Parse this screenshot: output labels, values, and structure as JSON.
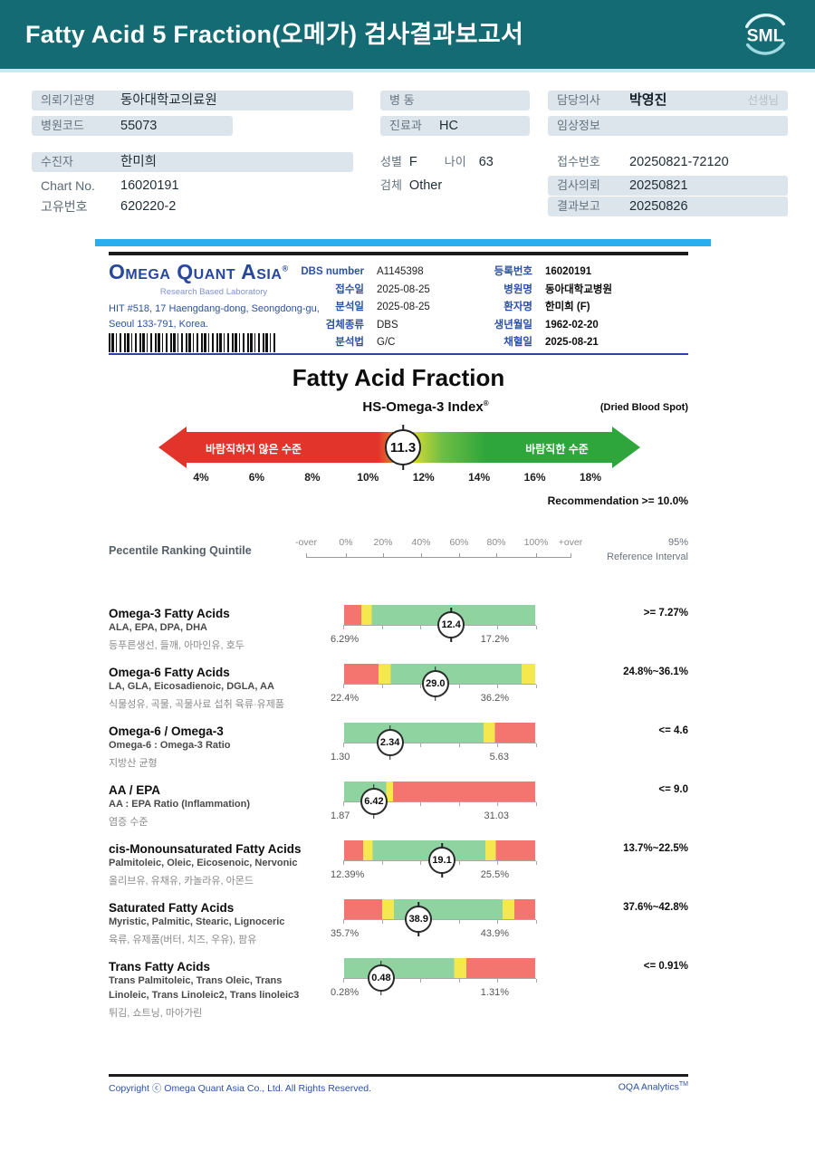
{
  "header": {
    "title": "Fatty Acid 5 Fraction(오메가) 검사결과보고서",
    "logo_text": "SML"
  },
  "colors": {
    "header_teal": "#156B73",
    "cyan_bar": "#29AEEF",
    "info_bar": "#DDE5EC",
    "doc_blue": "#2B51A3",
    "bar_red": "#F4756F",
    "bar_yellow": "#F5E74E",
    "bar_green": "#8FD3A1",
    "gauge_red": "#E3342B",
    "gauge_green": "#2FA63C"
  },
  "info": {
    "org_label": "의뢰기관명",
    "org_value": "동아대학교의료원",
    "hospital_code_label": "병원코드",
    "hospital_code_value": "55073",
    "patient_label": "수진자",
    "patient_value": "한미희",
    "chart_no_label": "Chart No.",
    "chart_no_value": "16020191",
    "unique_no_label": "고유번호",
    "unique_no_value": "620220-2",
    "ward_label": "병 동",
    "ward_value": "",
    "dept_label": "진료과",
    "dept_value": "HC",
    "sex_label": "성별",
    "sex_value": "F",
    "age_label": "나이",
    "age_value": "63",
    "specimen_label": "검체",
    "specimen_value": "Other",
    "doctor_label": "담당의사",
    "doctor_value": "박영진",
    "doctor_suffix": "선생님",
    "clinical_label": "임상정보",
    "clinical_value": "",
    "receipt_label": "접수번호",
    "receipt_value": "20250821-72120",
    "request_label": "검사의뢰",
    "request_value": "20250821",
    "report_label": "결과보고",
    "report_value": "20250826"
  },
  "doc": {
    "lab_name": "Omega Quant Asia",
    "lab_reg": "®",
    "lab_tagline": "Research Based Laboratory",
    "address1": "HIT #518, 17 Haengdang-dong, Seongdong-gu,",
    "address2": "Seoul 133-791, Korea.",
    "fields_mid": [
      [
        "DBS number",
        "A1145398"
      ],
      [
        "접수일",
        "2025-08-25"
      ],
      [
        "분석일",
        "2025-08-25"
      ],
      [
        "검체종류",
        "DBS"
      ],
      [
        "분석법",
        "G/C"
      ]
    ],
    "fields_right": [
      [
        "등록번호",
        "16020191"
      ],
      [
        "병원명",
        "동아대학교병원"
      ],
      [
        "환자명",
        "한미희 (F)"
      ],
      [
        "생년월일",
        "1962-02-20"
      ],
      [
        "채혈일",
        "2025-08-21"
      ]
    ]
  },
  "quintile": {
    "label": "Pecentile Ranking Quintile",
    "scale": [
      "-over",
      "0%",
      "20%",
      "40%",
      "60%",
      "80%",
      "100%",
      "+over"
    ],
    "ref_line1": "95%",
    "ref_line2": "Reference Interval"
  },
  "footer": {
    "copyright": "Copyright ⓒ Omega Quant Asia Co., Ltd.  All Rights Reserved.",
    "brand": "OQA Analytics",
    "brand_sup": "TM"
  },
  "chart_data": [
    {
      "type": "gauge",
      "title": "Fatty Acid Fraction",
      "subtitle": "HS-Omega-3 Index",
      "subtitle_reg": "®",
      "note": "(Dried Blood Spot)",
      "value": 11.3,
      "value_label": "11.3",
      "scale_min": 4,
      "scale_max": 18,
      "scale_ticks": [
        "4%",
        "6%",
        "8%",
        "10%",
        "12%",
        "14%",
        "16%",
        "18%"
      ],
      "left_zone_label": "바람직하지 않은 수준",
      "right_zone_label": "바람직한 수준",
      "recommendation": "Recommendation  >=  10.0%"
    },
    {
      "type": "bullet",
      "rows": [
        {
          "name": "Omega-3 Fatty Acids",
          "components": [
            "ALA, EPA, DPA, DHA"
          ],
          "korean": "등푸른생선, 들깨, 아마인유, 호두",
          "range_min": "6.29%",
          "range_max": "17.2%",
          "value": 12.4,
          "value_label": "12.4",
          "marker_pos": 0.56,
          "reference": ">= 7.27%",
          "segments": [
            {
              "color": "red",
              "to": 9
            },
            {
              "color": "yellow",
              "to": 14.5
            },
            {
              "color": "green",
              "to": 100
            }
          ]
        },
        {
          "name": "Omega-6 Fatty Acids",
          "components": [
            "LA, GLA, Eicosadienoic, DGLA, AA"
          ],
          "korean": "식물성유, 곡물, 곡물사료 섭취 육류·유제품",
          "range_min": "22.4%",
          "range_max": "36.2%",
          "value": 29.0,
          "value_label": "29.0",
          "marker_pos": 0.478,
          "reference": "24.8%~36.1%",
          "segments": [
            {
              "color": "red",
              "to": 18
            },
            {
              "color": "yellow",
              "to": 24.5
            },
            {
              "color": "green",
              "to": 93
            },
            {
              "color": "yellow",
              "to": 100
            }
          ]
        },
        {
          "name": "Omega-6 / Omega-3",
          "components": [
            "Omega-6 : Omega-3 Ratio"
          ],
          "korean": "지방산 균형",
          "range_min": "1.30",
          "range_max": "5.63",
          "value": 2.34,
          "value_label": "2.34",
          "marker_pos": 0.24,
          "reference": "<= 4.6",
          "segments": [
            {
              "color": "green",
              "to": 73
            },
            {
              "color": "yellow",
              "to": 79
            },
            {
              "color": "red",
              "to": 100
            }
          ]
        },
        {
          "name": "AA / EPA",
          "components": [
            "AA : EPA Ratio (Inflammation)"
          ],
          "korean": "염증 수준",
          "range_min": "1.87",
          "range_max": "31.03",
          "value": 6.42,
          "value_label": "6.42",
          "marker_pos": 0.156,
          "reference": "<= 9.0",
          "segments": [
            {
              "color": "green",
              "to": 22
            },
            {
              "color": "yellow",
              "to": 25.5
            },
            {
              "color": "red",
              "to": 100
            }
          ]
        },
        {
          "name": "cis-Monounsaturated Fatty Acids",
          "components": [
            "Palmitoleic, Oleic, Eicosenoic, Nervonic"
          ],
          "korean": "올리브유, 유채유, 카놀라유, 아몬드",
          "range_min": "12.39%",
          "range_max": "25.5%",
          "value": 19.1,
          "value_label": "19.1",
          "marker_pos": 0.512,
          "reference": "13.7%~22.5%",
          "segments": [
            {
              "color": "red",
              "to": 10
            },
            {
              "color": "yellow",
              "to": 15
            },
            {
              "color": "green",
              "to": 74
            },
            {
              "color": "yellow",
              "to": 79.5
            },
            {
              "color": "red",
              "to": 100
            }
          ]
        },
        {
          "name": "Saturated Fatty Acids",
          "components": [
            "Myristic, Palmitic, Stearic, Lignoceric"
          ],
          "korean": "육류, 유제품(버터, 치즈, 우유), 팜유",
          "range_min": "35.7%",
          "range_max": "43.9%",
          "value": 38.9,
          "value_label": "38.9",
          "marker_pos": 0.39,
          "reference": "37.6%~42.8%",
          "segments": [
            {
              "color": "red",
              "to": 20
            },
            {
              "color": "yellow",
              "to": 26
            },
            {
              "color": "green",
              "to": 83
            },
            {
              "color": "yellow",
              "to": 89
            },
            {
              "color": "red",
              "to": 100
            }
          ]
        },
        {
          "name": "Trans Fatty Acids",
          "components": [
            "Trans Palmitoleic, Trans Oleic, Trans",
            "Linoleic, Trans Linoleic2, Trans linoleic3"
          ],
          "korean": "튀김, 쇼트닝, 마아가린",
          "range_min": "0.28%",
          "range_max": "1.31%",
          "value": 0.48,
          "value_label": "0.48",
          "marker_pos": 0.194,
          "reference": "<= 0.91%",
          "segments": [
            {
              "color": "green",
              "to": 57.5
            },
            {
              "color": "yellow",
              "to": 64
            },
            {
              "color": "red",
              "to": 100
            }
          ]
        }
      ]
    }
  ]
}
